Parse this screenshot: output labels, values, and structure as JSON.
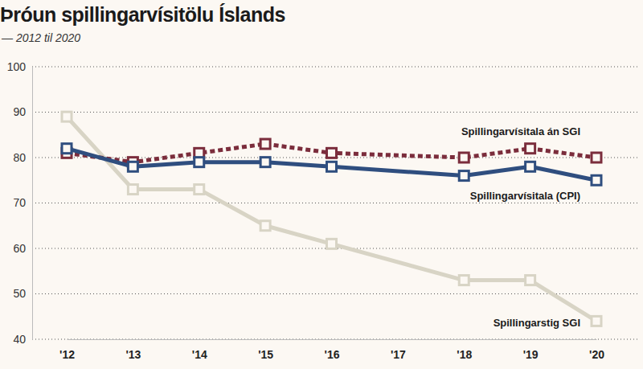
{
  "chart_data": {
    "type": "line",
    "title": "Þróun spillingarvísitölu Íslands",
    "subtitle": "— 2012 til 2020",
    "x": [
      2012,
      2013,
      2014,
      2015,
      2016,
      2018,
      2019,
      2020
    ],
    "xlim": [
      2012,
      2020
    ],
    "xticks": [
      {
        "value": 2012,
        "label": "'12"
      },
      {
        "value": 2013,
        "label": "'13"
      },
      {
        "value": 2014,
        "label": "'14"
      },
      {
        "value": 2015,
        "label": "'15"
      },
      {
        "value": 2016,
        "label": "'16"
      },
      {
        "value": 2017,
        "label": "'17"
      },
      {
        "value": 2018,
        "label": "'18"
      },
      {
        "value": 2019,
        "label": "'19"
      },
      {
        "value": 2020,
        "label": "'20"
      }
    ],
    "ylim": [
      40,
      100
    ],
    "yticks": [
      40,
      50,
      60,
      70,
      80,
      90,
      100
    ],
    "grid": true,
    "marker": "square",
    "series": [
      {
        "name": "Spillingarvísitala án SGI",
        "color": "#7b2d3c",
        "line_style": "dashed",
        "values": [
          81,
          79,
          81,
          83,
          81,
          80,
          82,
          80
        ]
      },
      {
        "name": "Spillingarvísitala (CPI)",
        "color": "#2f4e7f",
        "line_style": "solid",
        "values": [
          82,
          78,
          79,
          79,
          78,
          76,
          78,
          75
        ]
      },
      {
        "name": "Spillingarstig SGI",
        "color": "#d8d4c5",
        "line_style": "solid",
        "values": [
          89,
          73,
          73,
          65,
          61,
          53,
          53,
          44
        ]
      }
    ]
  }
}
